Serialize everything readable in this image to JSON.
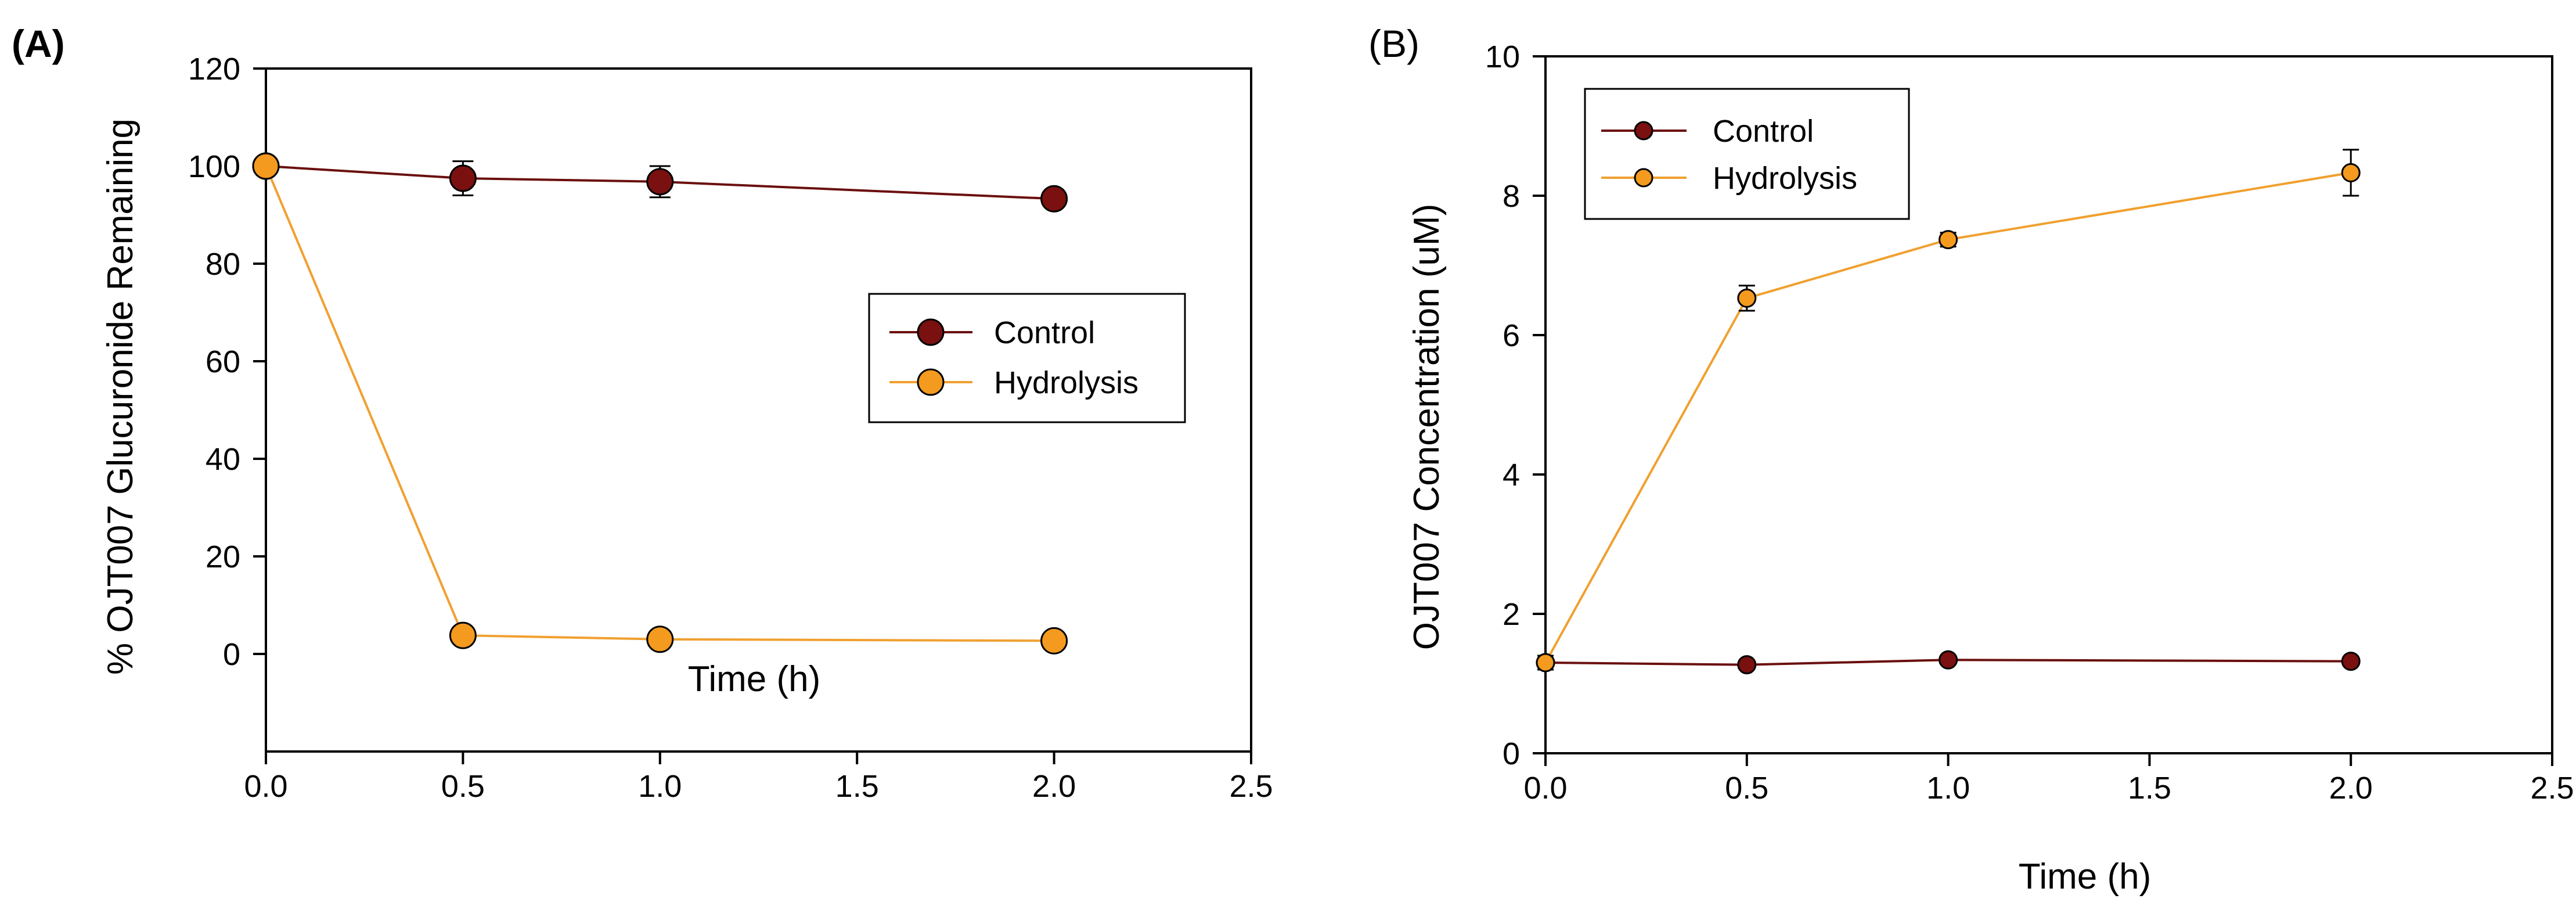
{
  "colors": {
    "control": "#6B0F0F",
    "control_fill": "#7A1010",
    "hydrolysis": "#F0A030",
    "hydrolysis_fill": "#F39A1F",
    "axis": "#000000"
  },
  "chart_data": [
    {
      "panel_label": "(A)",
      "type": "line",
      "xlabel": "Time (h)",
      "ylabel": "% OJT007 Glucuronide Remaining",
      "xlim": [
        0,
        2.5
      ],
      "ylim": [
        -20,
        120
      ],
      "xticks": [
        0,
        0.5,
        1,
        1.5,
        2,
        2.5
      ],
      "xtick_labels": [
        "0.0",
        "0.5",
        "1.0",
        "1.5",
        "2.0",
        "2.5"
      ],
      "yticks": [
        0,
        20,
        40,
        60,
        80,
        100,
        120
      ],
      "ytick_labels": [
        "0",
        "20",
        "40",
        "60",
        "80",
        "100",
        "120"
      ],
      "legend_position": "right-middle",
      "grid": false,
      "series": [
        {
          "name": "Control",
          "color_key": "control",
          "x": [
            0,
            0.5,
            1,
            2
          ],
          "y": [
            100,
            97.5,
            96.8,
            93.3
          ],
          "err": [
            1.5,
            3.5,
            3.2,
            1.2
          ]
        },
        {
          "name": "Hydrolysis",
          "color_key": "hydrolysis",
          "x": [
            0,
            0.5,
            1,
            2
          ],
          "y": [
            100,
            3.8,
            3.0,
            2.7
          ],
          "err": [
            1.0,
            1.2,
            0.8,
            0.6
          ]
        }
      ]
    },
    {
      "panel_label": "(B)",
      "type": "line",
      "xlabel": "Time (h)",
      "ylabel": "OJT007 Concentration (uM)",
      "xlim": [
        0,
        2.5
      ],
      "ylim": [
        0,
        10
      ],
      "xticks": [
        0,
        0.5,
        1,
        1.5,
        2,
        2.5
      ],
      "xtick_labels": [
        "0.0",
        "0.5",
        "1.0",
        "1.5",
        "2.0",
        "2.5"
      ],
      "yticks": [
        0,
        2,
        4,
        6,
        8,
        10
      ],
      "ytick_labels": [
        "0",
        "2",
        "4",
        "6",
        "8",
        "10"
      ],
      "legend_position": "top-left",
      "grid": false,
      "series": [
        {
          "name": "Control",
          "color_key": "control",
          "x": [
            0,
            0.5,
            1,
            2
          ],
          "y": [
            1.3,
            1.27,
            1.34,
            1.32
          ],
          "err": [
            0.05,
            0.04,
            0.05,
            0.03
          ]
        },
        {
          "name": "Hydrolysis",
          "color_key": "hydrolysis",
          "x": [
            0,
            0.5,
            1,
            2
          ],
          "y": [
            1.3,
            6.53,
            7.37,
            8.33
          ],
          "err": [
            0.1,
            0.18,
            0.1,
            0.33
          ]
        }
      ]
    }
  ]
}
